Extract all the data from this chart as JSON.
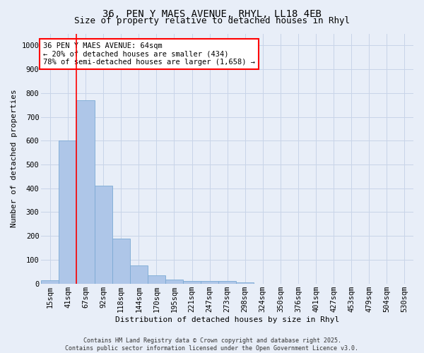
{
  "title_line1": "36, PEN Y MAES AVENUE, RHYL, LL18 4EB",
  "title_line2": "Size of property relative to detached houses in Rhyl",
  "xlabel": "Distribution of detached houses by size in Rhyl",
  "ylabel": "Number of detached properties",
  "bin_labels": [
    "15sqm",
    "41sqm",
    "67sqm",
    "92sqm",
    "118sqm",
    "144sqm",
    "170sqm",
    "195sqm",
    "221sqm",
    "247sqm",
    "273sqm",
    "298sqm",
    "324sqm",
    "350sqm",
    "376sqm",
    "401sqm",
    "427sqm",
    "453sqm",
    "479sqm",
    "504sqm",
    "530sqm"
  ],
  "bar_values": [
    13,
    601,
    770,
    412,
    190,
    77,
    36,
    17,
    10,
    12,
    11,
    6,
    0,
    0,
    0,
    0,
    0,
    0,
    0,
    0,
    0
  ],
  "bar_color": "#aec6e8",
  "bar_edge_color": "#7baad4",
  "grid_color": "#c8d4e8",
  "background_color": "#e8eef8",
  "red_line_x": 1.5,
  "annotation_text": "36 PEN Y MAES AVENUE: 64sqm\n← 20% of detached houses are smaller (434)\n78% of semi-detached houses are larger (1,658) →",
  "annotation_box_color": "#ff0000",
  "ylim": [
    0,
    1050
  ],
  "yticks": [
    0,
    100,
    200,
    300,
    400,
    500,
    600,
    700,
    800,
    900,
    1000
  ],
  "footer_line1": "Contains HM Land Registry data © Crown copyright and database right 2025.",
  "footer_line2": "Contains public sector information licensed under the Open Government Licence v3.0.",
  "title_fontsize": 10,
  "subtitle_fontsize": 9,
  "axis_label_fontsize": 8,
  "tick_fontsize": 7.5,
  "annotation_fontsize": 7.5,
  "footer_fontsize": 6
}
